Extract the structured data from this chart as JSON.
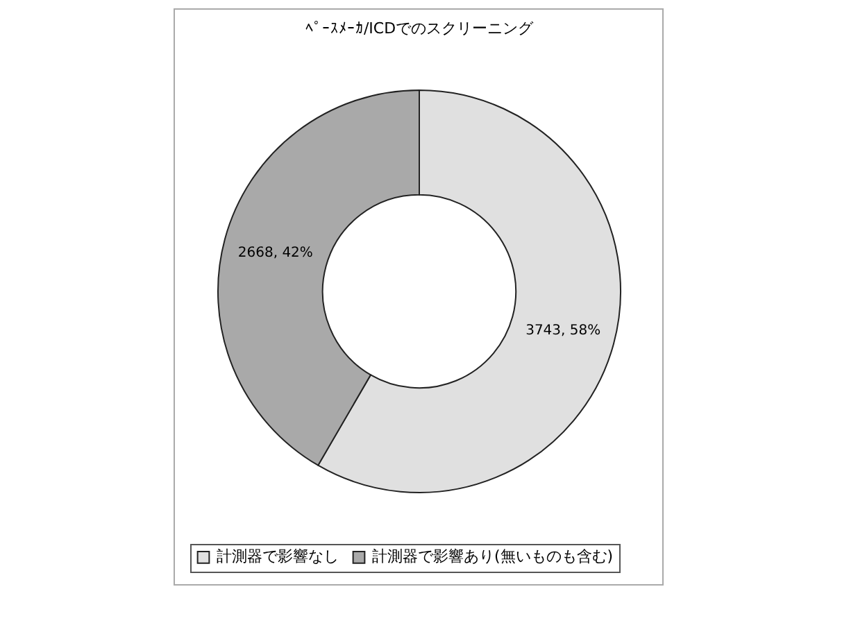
{
  "chart_data": {
    "type": "donut",
    "title": "ﾍﾟｰｽﾒｰｶ/ICDでのスクリーニング",
    "categories": [
      "計測器で影響なし",
      "計測器で影響あり(無いものも含む)"
    ],
    "values": [
      3743,
      2668
    ],
    "value_labels": [
      "3743, 58%",
      "2668, 42%"
    ],
    "colors": [
      "#e0e0e0",
      "#a9a9a9"
    ],
    "legend": "bottom"
  }
}
